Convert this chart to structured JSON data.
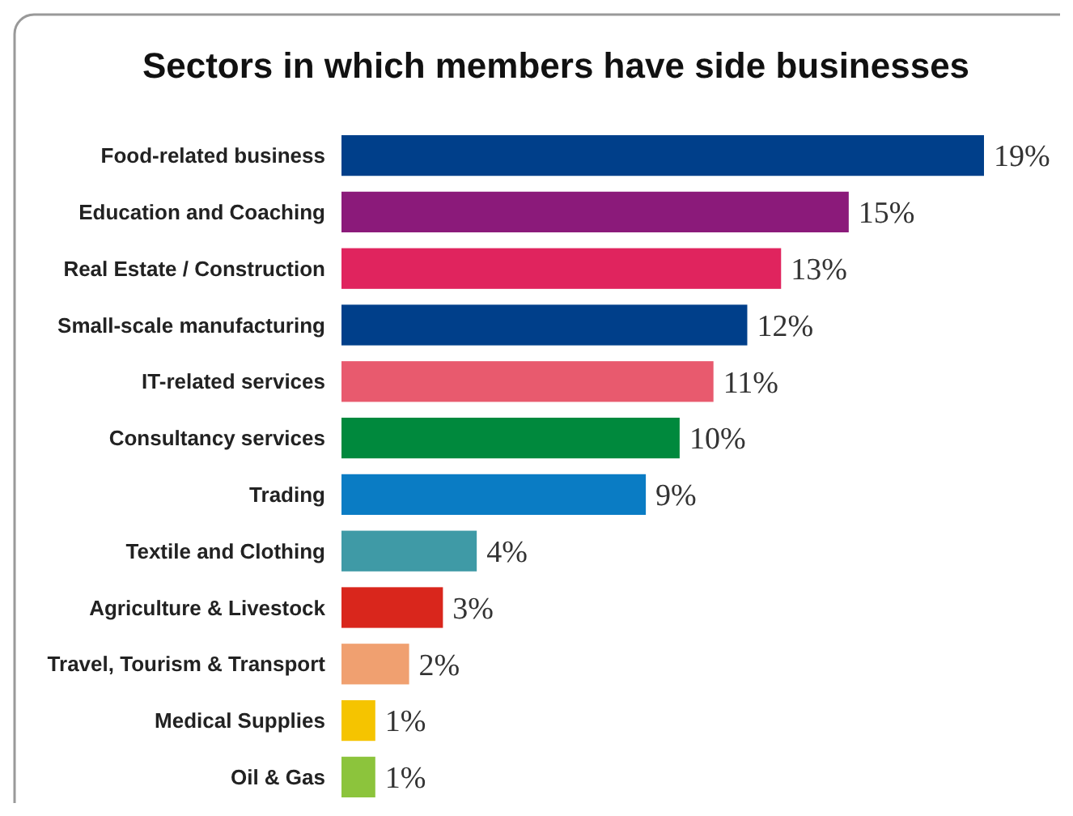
{
  "chart_data": {
    "type": "bar",
    "orientation": "horizontal",
    "title": "Sectors in which members have side businesses",
    "categories": [
      "Food-related business",
      "Education and Coaching",
      "Real Estate / Construction",
      "Small-scale manufacturing",
      "IT-related services",
      "Consultancy services",
      "Trading",
      "Textile and Clothing",
      "Agriculture & Livestock",
      "Travel, Tourism & Transport",
      "Medical Supplies",
      "Oil & Gas"
    ],
    "values": [
      19,
      15,
      13,
      12,
      11,
      10,
      9,
      4,
      3,
      2,
      1,
      1
    ],
    "value_labels": [
      "19%",
      "15%",
      "13%",
      "12%",
      "11%",
      "10%",
      "9%",
      "4%",
      "3%",
      "2%",
      "1%",
      "1%"
    ],
    "colors": [
      "#003f8a",
      "#8b1a7a",
      "#e0245e",
      "#003f8a",
      "#e85a6e",
      "#00893d",
      "#0a7cc4",
      "#3f9aa6",
      "#d9261c",
      "#f0a070",
      "#f5c400",
      "#8cc43c"
    ]
  }
}
